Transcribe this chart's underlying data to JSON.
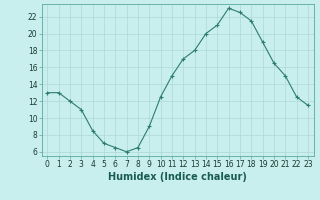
{
  "x": [
    0,
    1,
    2,
    3,
    4,
    5,
    6,
    7,
    8,
    9,
    10,
    11,
    12,
    13,
    14,
    15,
    16,
    17,
    18,
    19,
    20,
    21,
    22,
    23
  ],
  "y": [
    13,
    13,
    12,
    11,
    8.5,
    7,
    6.5,
    6,
    6.5,
    9,
    12.5,
    15,
    17,
    18,
    20,
    21,
    23,
    22.5,
    21.5,
    19,
    16.5,
    15,
    12.5,
    11.5
  ],
  "line_color": "#2d7d6e",
  "marker": "+",
  "marker_color": "#2d7d6e",
  "bg_color": "#c8eeee",
  "grid_color": "#b0d8d8",
  "xlabel": "Humidex (Indice chaleur)",
  "xlabel_fontsize": 7,
  "ylabel_ticks": [
    6,
    8,
    10,
    12,
    14,
    16,
    18,
    20,
    22
  ],
  "xlim": [
    -0.5,
    23.5
  ],
  "ylim": [
    5.5,
    23.5
  ],
  "xticks": [
    0,
    1,
    2,
    3,
    4,
    5,
    6,
    7,
    8,
    9,
    10,
    11,
    12,
    13,
    14,
    15,
    16,
    17,
    18,
    19,
    20,
    21,
    22,
    23
  ],
  "tick_fontsize": 5.5,
  "line_width": 0.8,
  "marker_size": 3
}
